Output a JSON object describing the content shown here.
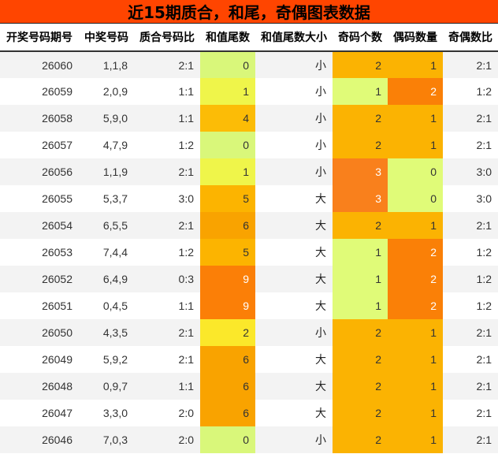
{
  "title": "近15期质合，和尾，奇偶图表数据",
  "headers": [
    "开奖号码期号",
    "中奖号码",
    "质合号码比",
    "和值尾数",
    "和值尾数大小",
    "奇码个数",
    "偶码数量",
    "奇偶数比"
  ],
  "rows": [
    {
      "issue": "26060",
      "numbers": "1,1,8",
      "pc_ratio": "2:1",
      "sum_tail": "0",
      "size": "小",
      "odd": "2",
      "even": "1",
      "oe_ratio": "2:1"
    },
    {
      "issue": "26059",
      "numbers": "2,0,9",
      "pc_ratio": "1:1",
      "sum_tail": "1",
      "size": "小",
      "odd": "1",
      "even": "2",
      "oe_ratio": "1:2"
    },
    {
      "issue": "26058",
      "numbers": "5,9,0",
      "pc_ratio": "1:1",
      "sum_tail": "4",
      "size": "小",
      "odd": "2",
      "even": "1",
      "oe_ratio": "2:1"
    },
    {
      "issue": "26057",
      "numbers": "4,7,9",
      "pc_ratio": "1:2",
      "sum_tail": "0",
      "size": "小",
      "odd": "2",
      "even": "1",
      "oe_ratio": "2:1"
    },
    {
      "issue": "26056",
      "numbers": "1,1,9",
      "pc_ratio": "2:1",
      "sum_tail": "1",
      "size": "小",
      "odd": "3",
      "even": "0",
      "oe_ratio": "3:0"
    },
    {
      "issue": "26055",
      "numbers": "5,3,7",
      "pc_ratio": "3:0",
      "sum_tail": "5",
      "size": "大",
      "odd": "3",
      "even": "0",
      "oe_ratio": "3:0"
    },
    {
      "issue": "26054",
      "numbers": "6,5,5",
      "pc_ratio": "2:1",
      "sum_tail": "6",
      "size": "大",
      "odd": "2",
      "even": "1",
      "oe_ratio": "2:1"
    },
    {
      "issue": "26053",
      "numbers": "7,4,4",
      "pc_ratio": "1:2",
      "sum_tail": "5",
      "size": "大",
      "odd": "1",
      "even": "2",
      "oe_ratio": "1:2"
    },
    {
      "issue": "26052",
      "numbers": "6,4,9",
      "pc_ratio": "0:3",
      "sum_tail": "9",
      "size": "大",
      "odd": "1",
      "even": "2",
      "oe_ratio": "1:2"
    },
    {
      "issue": "26051",
      "numbers": "0,4,5",
      "pc_ratio": "1:1",
      "sum_tail": "9",
      "size": "大",
      "odd": "1",
      "even": "2",
      "oe_ratio": "1:2"
    },
    {
      "issue": "26050",
      "numbers": "4,3,5",
      "pc_ratio": "2:1",
      "sum_tail": "2",
      "size": "小",
      "odd": "2",
      "even": "1",
      "oe_ratio": "2:1"
    },
    {
      "issue": "26049",
      "numbers": "5,9,2",
      "pc_ratio": "2:1",
      "sum_tail": "6",
      "size": "大",
      "odd": "2",
      "even": "1",
      "oe_ratio": "2:1"
    },
    {
      "issue": "26048",
      "numbers": "0,9,7",
      "pc_ratio": "1:1",
      "sum_tail": "6",
      "size": "大",
      "odd": "2",
      "even": "1",
      "oe_ratio": "2:1"
    },
    {
      "issue": "26047",
      "numbers": "3,3,0",
      "pc_ratio": "2:0",
      "sum_tail": "6",
      "size": "大",
      "odd": "2",
      "even": "1",
      "oe_ratio": "2:1"
    },
    {
      "issue": "26046",
      "numbers": "7,0,3",
      "pc_ratio": "2:0",
      "sum_tail": "0",
      "size": "小",
      "odd": "2",
      "even": "1",
      "oe_ratio": "2:1"
    }
  ],
  "colors": {
    "title_bg": "#ff4500",
    "sum_tail_scale": {
      "0": "#d9f77a",
      "1": "#eff54a",
      "2": "#fbe82a",
      "4": "#fcbc06",
      "5": "#fcb400",
      "6": "#f9a300",
      "9": "#fb7f07"
    },
    "count_scale": {
      "0": "#e0fb78",
      "1": "#fcb400",
      "2": "#fa8007",
      "3": "#f9801c"
    },
    "count_scale_odd_min": "#e0fb78"
  }
}
